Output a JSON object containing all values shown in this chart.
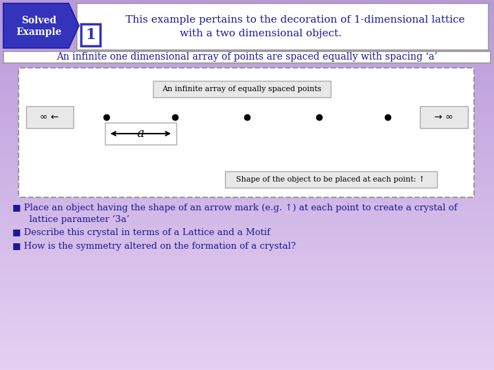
{
  "bg_color": "#c8a8e0",
  "bg_bottom": "#e0d0f0",
  "header_text_line1": "This example pertains to the decoration of 1-dimensional lattice",
  "header_text_line2": "with a two dimensional object.",
  "subheader_text": "An infinite one dimensional array of points are spaced equally with spacing ‘a’",
  "diagram_label1": "An infinite array of equally spaced points",
  "diagram_label2": "Shape of the object to be placed at each point: ↑",
  "infinity_left": "∞ ←",
  "infinity_right": "→ ∞",
  "spacing_label": "a",
  "bullet1a": "■ Place an object having the shape of an arrow mark (e.g. ↑) at each point to create a crystal of",
  "bullet1b": "   lattice parameter ‘3a’",
  "bullet2": "■ Describe this crystal in terms of a Lattice and a Motif",
  "bullet3": "■ How is the symmetry altered on the formation of a crystal?",
  "text_color": "#1a1a99",
  "white": "#ffffff",
  "solved_bg": "#3333bb",
  "solved_text": "#ffffff",
  "num_border": "#3333bb",
  "gray_border": "#999999",
  "dark_border": "#555555",
  "dot_color": "#000000",
  "black": "#000000",
  "font_size_header": 11,
  "font_size_sub": 10,
  "font_size_bullet": 9.5,
  "font_size_diagram": 8,
  "font_size_inf": 10,
  "font_size_a": 13
}
